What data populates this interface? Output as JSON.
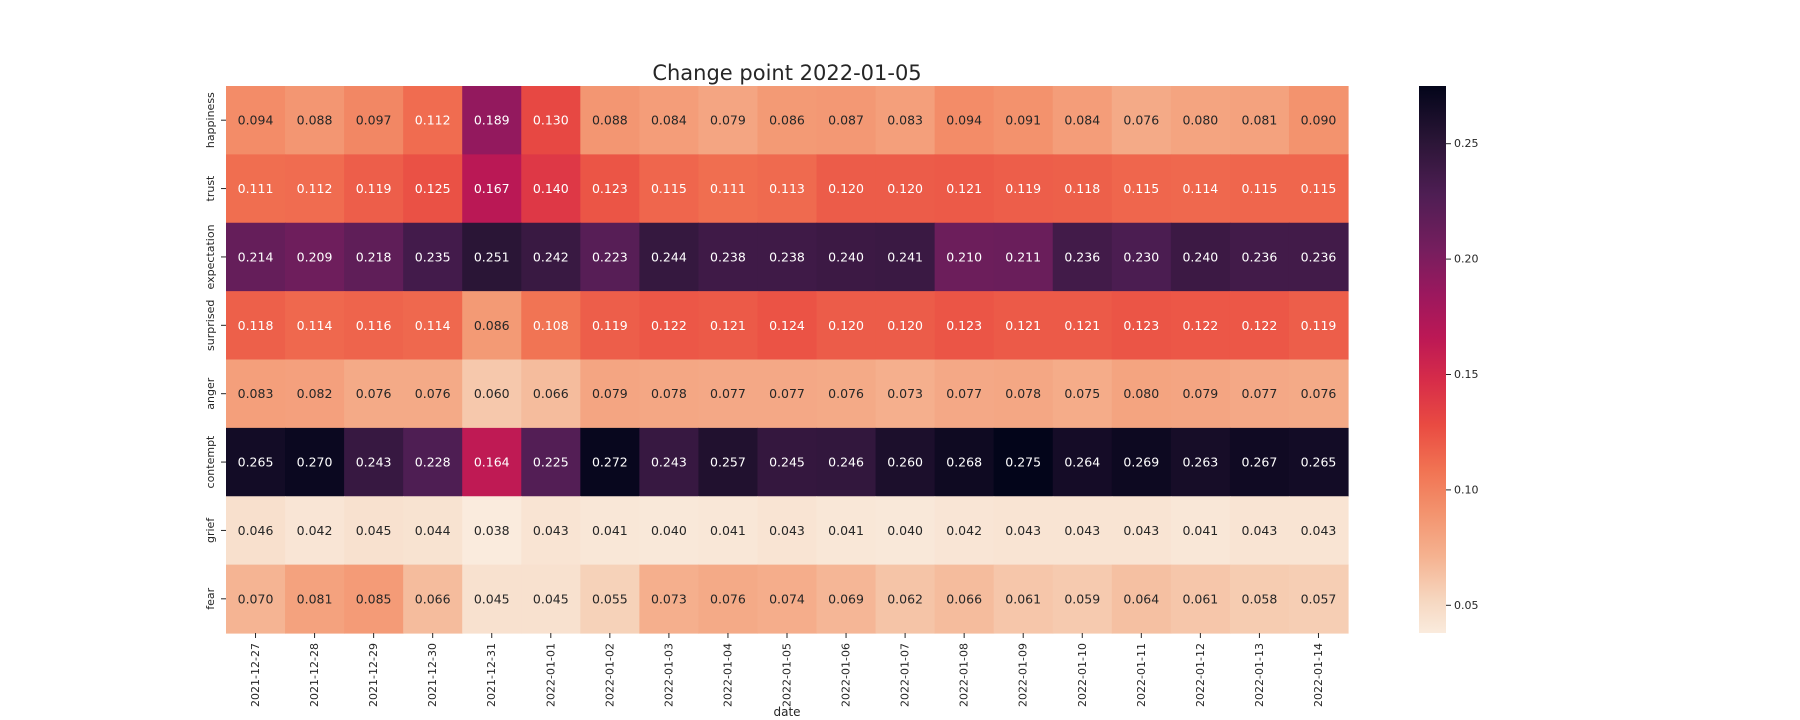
{
  "chart_data": {
    "type": "heatmap",
    "title": "Change point 2022-01-05",
    "xlabel": "date",
    "ylabel": "",
    "x_categories": [
      "2021-12-27",
      "2021-12-28",
      "2021-12-29",
      "2021-12-30",
      "2021-12-31",
      "2022-01-01",
      "2022-01-02",
      "2022-01-03",
      "2022-01-04",
      "2022-01-05",
      "2022-01-06",
      "2022-01-07",
      "2022-01-08",
      "2022-01-09",
      "2022-01-10",
      "2022-01-11",
      "2022-01-12",
      "2022-01-13",
      "2022-01-14"
    ],
    "y_categories": [
      "happiness",
      "trust",
      "expectation",
      "surprised",
      "anger",
      "contempt",
      "grief",
      "fear"
    ],
    "values": [
      [
        0.094,
        0.088,
        0.097,
        0.112,
        0.189,
        0.13,
        0.088,
        0.084,
        0.079,
        0.086,
        0.087,
        0.083,
        0.094,
        0.091,
        0.084,
        0.076,
        0.08,
        0.081,
        0.09
      ],
      [
        0.111,
        0.112,
        0.119,
        0.125,
        0.167,
        0.14,
        0.123,
        0.115,
        0.111,
        0.113,
        0.12,
        0.12,
        0.121,
        0.119,
        0.118,
        0.115,
        0.114,
        0.115,
        0.115
      ],
      [
        0.214,
        0.209,
        0.218,
        0.235,
        0.251,
        0.242,
        0.223,
        0.244,
        0.238,
        0.238,
        0.24,
        0.241,
        0.21,
        0.211,
        0.236,
        0.23,
        0.24,
        0.236,
        0.236
      ],
      [
        0.118,
        0.114,
        0.116,
        0.114,
        0.086,
        0.108,
        0.119,
        0.122,
        0.121,
        0.124,
        0.12,
        0.12,
        0.123,
        0.121,
        0.121,
        0.123,
        0.122,
        0.122,
        0.119
      ],
      [
        0.083,
        0.082,
        0.076,
        0.076,
        0.06,
        0.066,
        0.079,
        0.078,
        0.077,
        0.077,
        0.076,
        0.073,
        0.077,
        0.078,
        0.075,
        0.08,
        0.079,
        0.077,
        0.076
      ],
      [
        0.265,
        0.27,
        0.243,
        0.228,
        0.164,
        0.225,
        0.272,
        0.243,
        0.257,
        0.245,
        0.246,
        0.26,
        0.268,
        0.275,
        0.264,
        0.269,
        0.263,
        0.267,
        0.265
      ],
      [
        0.046,
        0.042,
        0.045,
        0.044,
        0.038,
        0.043,
        0.041,
        0.04,
        0.041,
        0.043,
        0.041,
        0.04,
        0.042,
        0.043,
        0.043,
        0.043,
        0.041,
        0.043,
        0.043
      ],
      [
        0.07,
        0.081,
        0.085,
        0.066,
        0.045,
        0.045,
        0.055,
        0.073,
        0.076,
        0.074,
        0.069,
        0.062,
        0.066,
        0.061,
        0.059,
        0.064,
        0.061,
        0.058,
        0.057
      ]
    ],
    "value_format": "3 decimals",
    "colorscale": "rocket_r",
    "colorbar": {
      "range": [
        0.038,
        0.275
      ],
      "ticks": [
        0.05,
        0.1,
        0.15,
        0.2,
        0.25
      ],
      "tick_labels": [
        "0.05",
        "0.10",
        "0.15",
        "0.20",
        "0.25"
      ]
    },
    "grid": false,
    "legend": "colorbar-right"
  }
}
